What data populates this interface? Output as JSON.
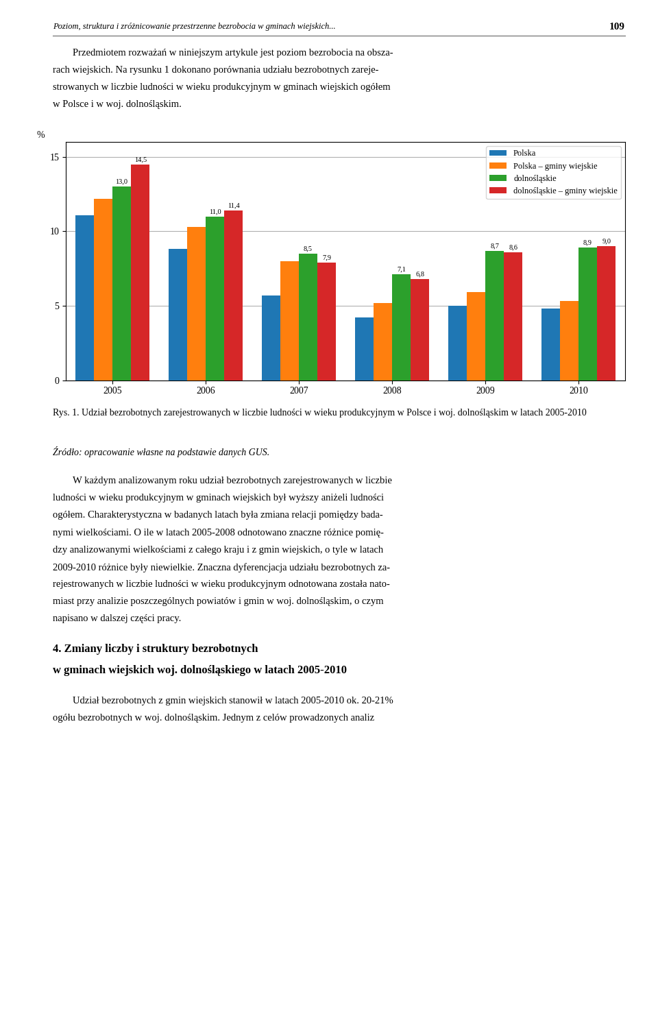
{
  "chart_data": {
    "type": "bar",
    "title": "Rys. 1. Udział bezrobotnych zarejestrowanych w liczbie ludności w wieku produkcyjnym w Polsce i woj. dolnośląskim w latach 2005-2010",
    "ylabel": "%",
    "categories": [
      "2005",
      "2006",
      "2007",
      "2008",
      "2009",
      "2010"
    ],
    "series": [
      {
        "name": "Polska",
        "values": [
          11.1,
          8.8,
          5.7,
          4.2,
          5.0,
          4.8
        ]
      },
      {
        "name": "Polska – gminy wiejskie",
        "values": [
          12.2,
          10.3,
          8.0,
          5.2,
          5.9,
          5.3
        ]
      },
      {
        "name": "dolnośląskie",
        "values": [
          13.0,
          11.0,
          8.5,
          7.1,
          8.7,
          8.9
        ],
        "data_labels": true,
        "value_labels": [
          "13,0",
          "11,0",
          "8,5",
          "7,1",
          "8,7",
          "8,9"
        ]
      },
      {
        "name": "dolnośląskie – gminy wiejskie",
        "values": [
          14.5,
          11.4,
          7.9,
          6.8,
          8.6,
          9.0
        ],
        "data_labels": true,
        "value_labels": [
          "14,5",
          "11,4",
          "7,9",
          "6,8",
          "8,6",
          "9,0"
        ]
      }
    ],
    "ylim": [
      0,
      16
    ],
    "yticks": [
      0,
      5,
      10,
      15
    ],
    "grid": true,
    "legend": "upper right",
    "annotations": [
      "Poziom, struktura i zróżnicowanie przestrzenne bezrobocia w gminach wiejskich...",
      "109",
      "Przedmiotem rozważań w niniejszym artykule jest poziom bezrobocia na obsza-",
      "rach wiejskich. Na rysunku 1 dokonano porównania udziału bezrobotnych zareje-",
      "strowanych w liczbie ludności w wieku produkcyjnym w gminach wiejskich ogółem",
      "w Polsce i w woj. dolnośląskim.",
      "Źródło: opracowanie własne na podstawie danych GUS.",
      "W każdym analizowanym roku udział bezrobotnych zarejestrowanych w liczbie",
      "ludności w wieku produkcyjnym w gminach wiejskich był wyższy aniżeli ludności",
      "ogółem. Charakterystyczna w badanych latach była zmiana relacji pomiędzy bada-",
      "nymi wielkościami. O ile w latach 2005-2008 odnotowano znaczne różnice pomię-",
      "dzy analizowanymi wielkościami z całego kraju i z gmin wiejskich, o tyle w latach",
      "2009-2010 różnice były niewielkie. Znaczna dyferencjacja udziału bezrobotnych za-",
      "rejestrowanych w liczbie ludności w wieku produkcyjnym odnotowana została nato-",
      "miast przy analizie poszczególnych powiatów i gmin w woj. dolnośląskim, o czym",
      "napisano w dalszej części pracy.",
      "4. Zmiany liczby i struktury bezrobotnych",
      "w gminach wiejskich woj. dolnośląskiego w latach 2005-2010",
      "Udział bezrobotnych z gmin wiejskich stanowił w latach 2005-2010 ok. 20-21%",
      "ogółu bezrobotnych w woj. dolnośląskim. Jednym z celów prowadzonych analiz"
    ]
  }
}
